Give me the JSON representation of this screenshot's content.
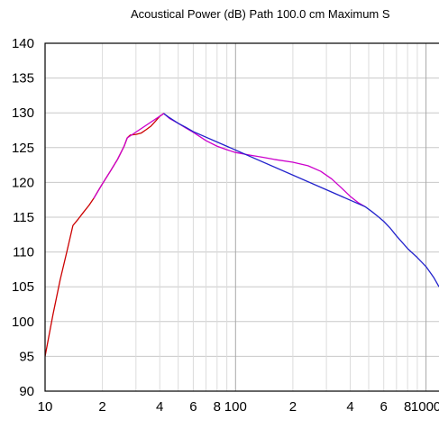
{
  "chart_data": {
    "type": "line",
    "title": "Acoustical Power (dB)   Path 100.0 cm   Maximum S",
    "xlabel": "",
    "ylabel": "",
    "x_scale": "log",
    "xlim": [
      10,
      1170
    ],
    "ylim": [
      90,
      140
    ],
    "grid": true,
    "x_tick_labels": [
      {
        "value": 10,
        "label": "10"
      },
      {
        "value": 20,
        "label": "2"
      },
      {
        "value": 40,
        "label": "4"
      },
      {
        "value": 60,
        "label": "6"
      },
      {
        "value": 80,
        "label": "8"
      },
      {
        "value": 100,
        "label": "100"
      },
      {
        "value": 200,
        "label": "2"
      },
      {
        "value": 400,
        "label": "4"
      },
      {
        "value": 600,
        "label": "6"
      },
      {
        "value": 800,
        "label": "8"
      },
      {
        "value": 1000,
        "label": "1000"
      }
    ],
    "y_ticks": [
      90,
      95,
      100,
      105,
      110,
      115,
      120,
      125,
      130,
      135,
      140
    ],
    "series": [
      {
        "color": "#cc0000",
        "points": [
          [
            10,
            95
          ],
          [
            11,
            101
          ],
          [
            12,
            106
          ],
          [
            13,
            110
          ],
          [
            14,
            113.8
          ],
          [
            15,
            114.8
          ],
          [
            16,
            115.8
          ],
          [
            17,
            116.7
          ],
          [
            18,
            117.7
          ],
          [
            19,
            118.8
          ],
          [
            20,
            119.8
          ],
          [
            22,
            121.6
          ],
          [
            24,
            123.3
          ],
          [
            26,
            125.2
          ],
          [
            27,
            126.4
          ],
          [
            28,
            126.8
          ],
          [
            30,
            126.9
          ],
          [
            32,
            127.1
          ],
          [
            34,
            127.6
          ],
          [
            36,
            128.1
          ],
          [
            38,
            128.8
          ],
          [
            40,
            129.5
          ],
          [
            42,
            129.9
          ]
        ]
      },
      {
        "color": "#cc00cc",
        "points": [
          [
            18,
            117.7
          ],
          [
            20,
            119.8
          ],
          [
            22,
            121.6
          ],
          [
            24,
            123.3
          ],
          [
            26,
            125.2
          ],
          [
            27,
            126.4
          ],
          [
            42,
            129.9
          ],
          [
            45,
            129.2
          ],
          [
            50,
            128.5
          ],
          [
            55,
            127.8
          ],
          [
            60,
            127.2
          ],
          [
            70,
            126.0
          ],
          [
            80,
            125.2
          ],
          [
            90,
            124.7
          ],
          [
            100,
            124.3
          ],
          [
            120,
            123.9
          ],
          [
            140,
            123.6
          ],
          [
            160,
            123.3
          ],
          [
            200,
            122.9
          ],
          [
            240,
            122.4
          ],
          [
            280,
            121.6
          ],
          [
            320,
            120.5
          ],
          [
            360,
            119.2
          ],
          [
            400,
            118.0
          ],
          [
            440,
            117.1
          ],
          [
            480,
            116.5
          ]
        ]
      },
      {
        "color": "#2222cc",
        "points": [
          [
            42,
            129.9
          ],
          [
            45,
            129.3
          ],
          [
            50,
            128.5
          ],
          [
            55,
            127.9
          ],
          [
            60,
            127.3
          ],
          [
            480,
            116.5
          ],
          [
            520,
            115.8
          ],
          [
            560,
            115.1
          ],
          [
            600,
            114.4
          ],
          [
            650,
            113.4
          ],
          [
            700,
            112.3
          ],
          [
            800,
            110.5
          ],
          [
            900,
            109.2
          ],
          [
            1000,
            107.9
          ],
          [
            1100,
            106.3
          ],
          [
            1170,
            105.0
          ]
        ]
      }
    ]
  }
}
